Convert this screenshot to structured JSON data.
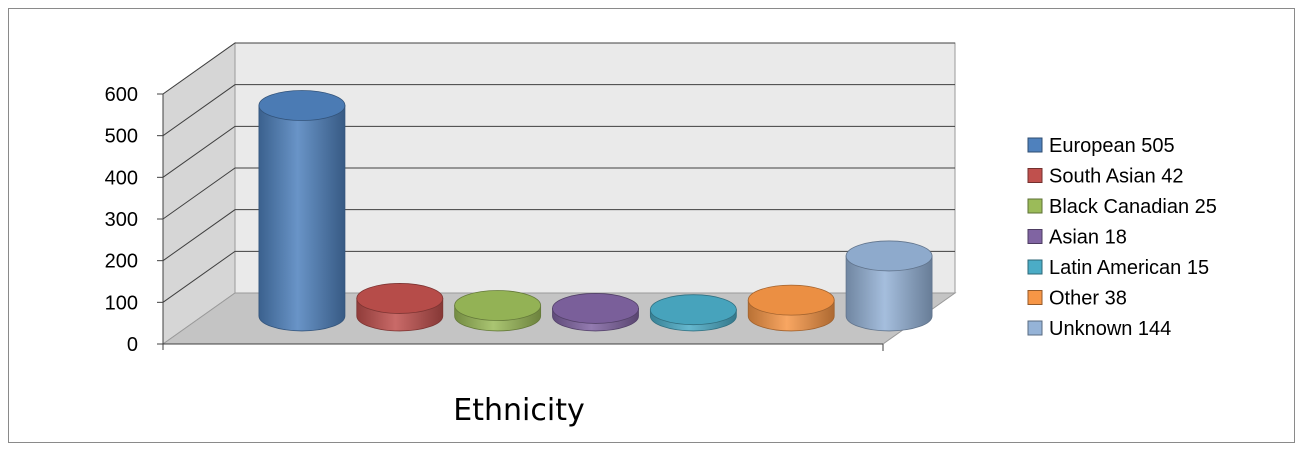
{
  "chart_data": {
    "type": "bar",
    "style": "3d-cylinder",
    "xlabel": "Ethnicity",
    "ylabel": "",
    "ylim": [
      0,
      600
    ],
    "yticks": [
      0,
      100,
      200,
      300,
      400,
      500,
      600
    ],
    "grid": true,
    "legend_position": "right",
    "series": [
      {
        "name": "European 505",
        "value": 505,
        "color": "#4f81bd"
      },
      {
        "name": "South Asian 42",
        "value": 42,
        "color": "#c0504d"
      },
      {
        "name": "Black Canadian 25",
        "value": 25,
        "color": "#9bbb59"
      },
      {
        "name": "Asian 18",
        "value": 18,
        "color": "#8064a2"
      },
      {
        "name": "Latin American 15",
        "value": 15,
        "color": "#4bacc6"
      },
      {
        "name": "Other 38",
        "value": 38,
        "color": "#f79646"
      },
      {
        "name": "Unknown 144",
        "value": 144,
        "color": "#95b3d7"
      }
    ]
  }
}
